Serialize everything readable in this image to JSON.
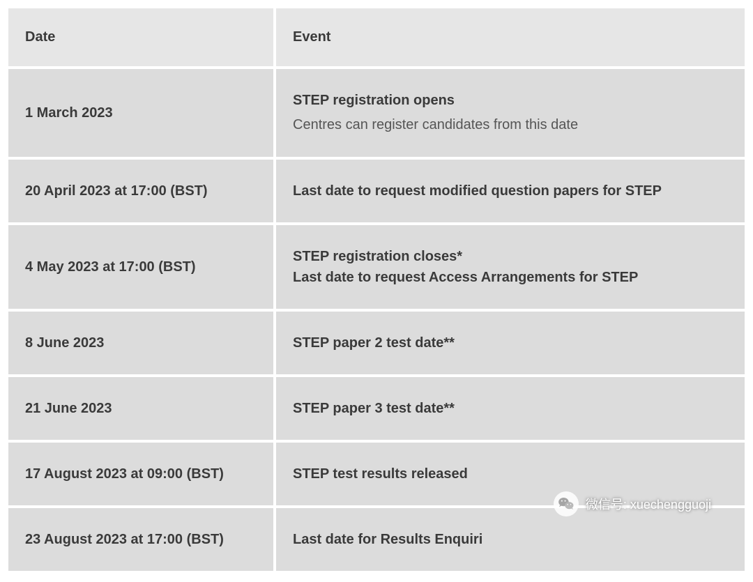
{
  "table": {
    "header": {
      "date": "Date",
      "event": "Event"
    },
    "rows": [
      {
        "date": "1 March 2023",
        "event_lines": [
          {
            "text": "STEP registration opens",
            "bold": true
          },
          {
            "text": "Centres can register candidates from this date",
            "bold": false
          }
        ]
      },
      {
        "date": "20 April 2023 at 17:00 (BST)",
        "event_lines": [
          {
            "text": "Last date to request modified question papers for STEP",
            "bold": true
          }
        ]
      },
      {
        "date": "4 May 2023 at 17:00 (BST)",
        "event_lines": [
          {
            "text": "STEP registration closes*",
            "bold": true
          },
          {
            "text": "Last date to request Access Arrangements for STEP",
            "bold": true
          }
        ]
      },
      {
        "date": "8 June 2023",
        "event_lines": [
          {
            "text": "STEP paper 2 test date**",
            "bold": true
          }
        ]
      },
      {
        "date": "21 June 2023",
        "event_lines": [
          {
            "text": "STEP paper 3 test date**",
            "bold": true
          }
        ]
      },
      {
        "date": "17 August 2023 at 09:00 (BST)",
        "event_lines": [
          {
            "text": "STEP test results released",
            "bold": true
          }
        ]
      },
      {
        "date": "23 August 2023 at 17:00 (BST)",
        "event_lines": [
          {
            "text": "Last date for Results Enquiri",
            "bold": true
          }
        ]
      }
    ]
  },
  "colors": {
    "header_bg": "#e6e6e6",
    "body_bg": "#dcdcdc",
    "text_bold": "#3a3a3a",
    "text_normal": "#555555",
    "page_bg": "#ffffff"
  },
  "watermark": {
    "label": "微信号: ",
    "id": "xuechengguoji",
    "icon": "wechat-icon"
  }
}
